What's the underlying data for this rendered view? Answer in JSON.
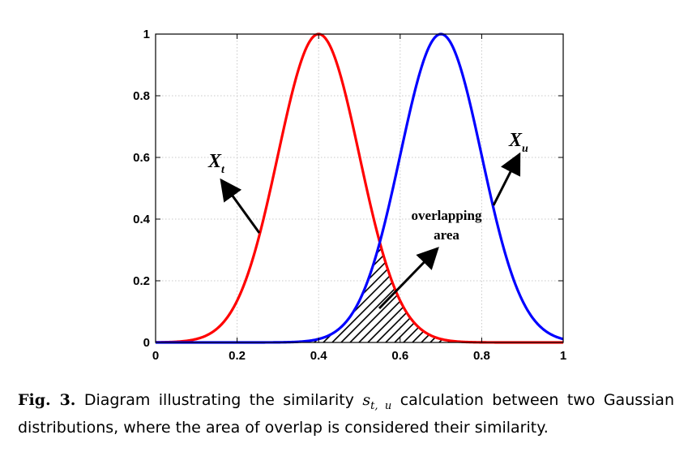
{
  "chart_data": {
    "type": "line",
    "xlim": [
      0,
      1
    ],
    "ylim": [
      0,
      1
    ],
    "x_ticks": [
      "0",
      "0.2",
      "0.4",
      "0.6",
      "0.8",
      "1"
    ],
    "y_ticks": [
      "0",
      "0.2",
      "0.4",
      "0.6",
      "0.8",
      "1"
    ],
    "grid": true,
    "series": [
      {
        "label": "X_t",
        "color": "#ff0000",
        "mean": 0.4,
        "sigma": 0.1,
        "peak": 1.0
      },
      {
        "label": "X_u",
        "color": "#0000ff",
        "mean": 0.7,
        "sigma": 0.1,
        "peak": 1.0
      }
    ],
    "overlap_label_line1": "overlapping",
    "overlap_label_line2": "area",
    "label_xt_main": "X",
    "label_xt_sub": "t",
    "label_xu_main": "X",
    "label_xu_sub": "u"
  },
  "caption": {
    "fig_label": "Fig. 3.",
    "text_before": " Diagram illustrating the similarity ",
    "math_main": "s",
    "math_sub": "t, u",
    "text_after": " calculation between two Gaussian distributions, where the area of overlap is considered their similarity."
  }
}
